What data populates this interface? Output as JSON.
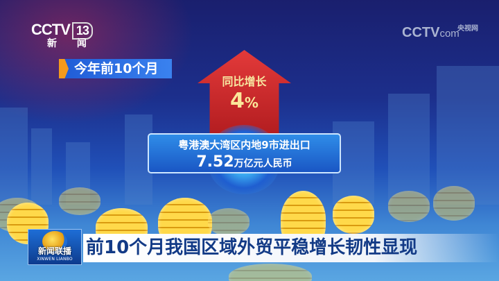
{
  "channel_logo": {
    "brand": "CCTV",
    "number": "13",
    "subtitle": "新 闻"
  },
  "watermark": {
    "brand": "CCTV",
    "cn": "央视网",
    "suffix": "com"
  },
  "period_tag": "今年前10个月",
  "growth": {
    "label": "同比增长",
    "value": "4",
    "unit": "%"
  },
  "info_box": {
    "line1": "粤港澳大湾区内地9市进出口",
    "amount": "7.52",
    "unit": "万亿元人民币"
  },
  "program_logo": {
    "cn": "新闻联播",
    "en": "XINWEN LIANBO"
  },
  "headline": "前10个月我国区域外贸平稳增长韧性显现",
  "colors": {
    "arrow": "#d42a2a",
    "tag_accent": "#f49a1c",
    "headline_text": "#123a86",
    "box": "#2f8de8"
  }
}
